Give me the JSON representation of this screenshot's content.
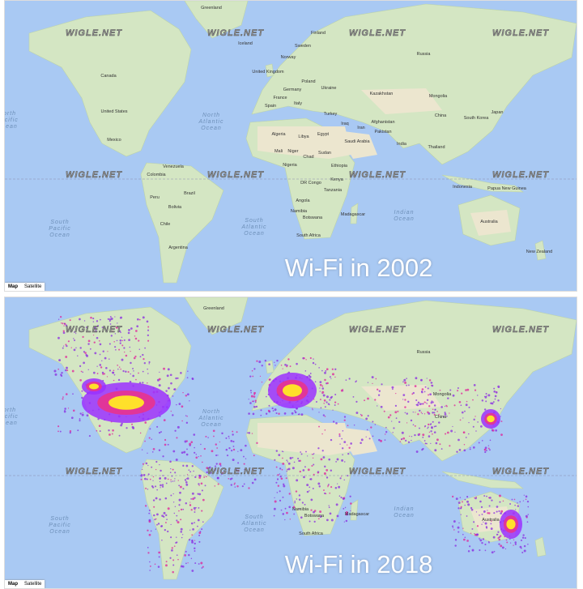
{
  "panels": [
    {
      "caption": "Wi-Fi in 2002",
      "watermark": "WIGLE.NET",
      "controls": [
        "Map",
        "Satellite"
      ],
      "labels": [
        "Greenland",
        "Iceland",
        "Finland",
        "Sweden",
        "Norway",
        "United Kingdom",
        "Poland",
        "Germany",
        "Ukraine",
        "France",
        "Italy",
        "Spain",
        "Kazakhstan",
        "Mongolia",
        "Russia",
        "Canada",
        "United States",
        "Mexico",
        "Turkey",
        "Iraq",
        "Iran",
        "Afghanistan",
        "Pakistan",
        "China",
        "Japan",
        "South Korea",
        "India",
        "Thailand",
        "Algeria",
        "Libya",
        "Egypt",
        "Saudi Arabia",
        "Mali",
        "Niger",
        "Chad",
        "Sudan",
        "Nigeria",
        "Ethiopia",
        "Kenya",
        "DR Congo",
        "Tanzania",
        "Angola",
        "Namibia",
        "Botswana",
        "Madagascar",
        "South Africa",
        "Venezuela",
        "Colombia",
        "Peru",
        "Brazil",
        "Bolivia",
        "Chile",
        "Argentina",
        "Indonesia",
        "Papua New Guinea",
        "Australia",
        "New Zealand"
      ],
      "oceans": [
        "North Atlantic Ocean",
        "North Pacific Ocean",
        "South Pacific Ocean",
        "South Atlantic Ocean",
        "Indian Ocean"
      ]
    },
    {
      "caption": "Wi-Fi in 2018",
      "watermark": "WIGLE.NET",
      "controls": [
        "Map",
        "Satellite"
      ],
      "labels": [
        "Greenland",
        "Russia",
        "Mongolia",
        "China",
        "Madagascar",
        "Botswana",
        "Namibia",
        "South Africa",
        "Australia"
      ],
      "oceans": [
        "North Atlantic Ocean",
        "North Pacific Ocean",
        "South Pacific Ocean",
        "South Atlantic Ocean",
        "Indian Ocean"
      ]
    }
  ]
}
